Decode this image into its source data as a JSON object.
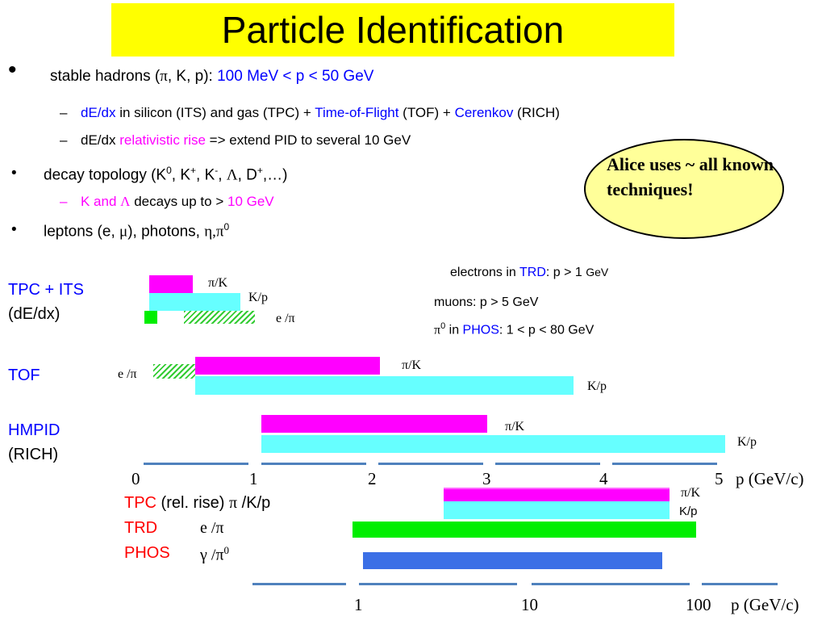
{
  "title": "Particle Identification",
  "bullets": {
    "b1_mark": "•",
    "b1_prefix": "stable hadrons (",
    "b1_pi": "π",
    "b1_mid": ", K, p): ",
    "b1_range": "100 MeV < p < 50 GeV",
    "sub1_dash": "–",
    "sub1_dedx": "dE/dx",
    "sub1_a": " in silicon (ITS) and gas (TPC)  + ",
    "sub1_tof": "Time-of-Flight",
    "sub1_b": " (TOF) + ",
    "sub1_cer": "Cerenkov",
    "sub1_c": " (RICH)",
    "sub2_dash": "–",
    "sub2_a": "dE/dx ",
    "sub2_rel": "relativistic rise",
    "sub2_b": " => extend PID to several 10 GeV",
    "b2_mark": "•",
    "b2_a": "decay topology (K",
    "b2_sup0": "0",
    "b2_b": ", K",
    "b2_supp": "+",
    "b2_c": ", K",
    "b2_supm": "-",
    "b2_d": ", ",
    "b2_lambda": "Λ",
    "b2_e": ", D",
    "b2_supd": "+",
    "b2_f": ",…)",
    "sub3_dash": "–",
    "sub3_a": "K and ",
    "sub3_lambda": "Λ",
    "sub3_b": " decays up to > ",
    "sub3_c": "10 GeV",
    "b3_mark": "•",
    "b3_a": "leptons (e, ",
    "b3_mu": "μ",
    "b3_b": "), photons, ",
    "b3_eta": "η,π",
    "b3_sup0": "0"
  },
  "callout": "Alice uses ~ all known techniques!",
  "detectors": {
    "tpc_its": "TPC + ITS",
    "tpc_its_sub": "(dE/dx)",
    "tof": "TOF",
    "hmpid": "HMPID",
    "hmpid_sub": "(RICH)"
  },
  "labels": {
    "pi_k": "π/K",
    "k_p": "K/p",
    "e_pi": "e /π"
  },
  "notes": {
    "electrons_a": "electrons in ",
    "electrons_trd": "TRD",
    "electrons_b": ": p > 1 ",
    "electrons_unit": "GeV",
    "muons": "muons: p > 5 GeV",
    "pi0_pi": "π",
    "pi0_sup": "0",
    "pi0_a": " in ",
    "pi0_phos": "PHOS",
    "pi0_b": ": 1 < p <  80 GeV"
  },
  "axis1": {
    "ticks": [
      "0",
      "1",
      "2",
      "3",
      "4",
      "5"
    ],
    "unit": "p (GeV/c)"
  },
  "lower": {
    "tpc": "TPC",
    "tpc_rest": " (rel. rise) ",
    "tpc_pi": "π",
    "tpc_kp": " /K/p",
    "trd": "TRD",
    "trd_label": "e /π",
    "phos": "PHOS",
    "phos_label_gamma": "γ /π",
    "phos_label_sup": "0",
    "pi_k": "π/K",
    "k_p": "K/p"
  },
  "axis2": {
    "ticks": [
      "1",
      "10",
      "100"
    ],
    "unit": "p (GeV/c)"
  },
  "colors": {
    "title_bg": "#ffff00",
    "blue_text": "#0000ff",
    "magenta_text": "#ff00ff",
    "red_text": "#ff0000",
    "pi_k_bar": "#ff00ff",
    "k_p_bar": "#66ffff",
    "electron_bar": "#00ee00",
    "phos_bar": "#3b6fe6",
    "axis": "#4f81bd",
    "callout_bg": "#ffff99"
  }
}
